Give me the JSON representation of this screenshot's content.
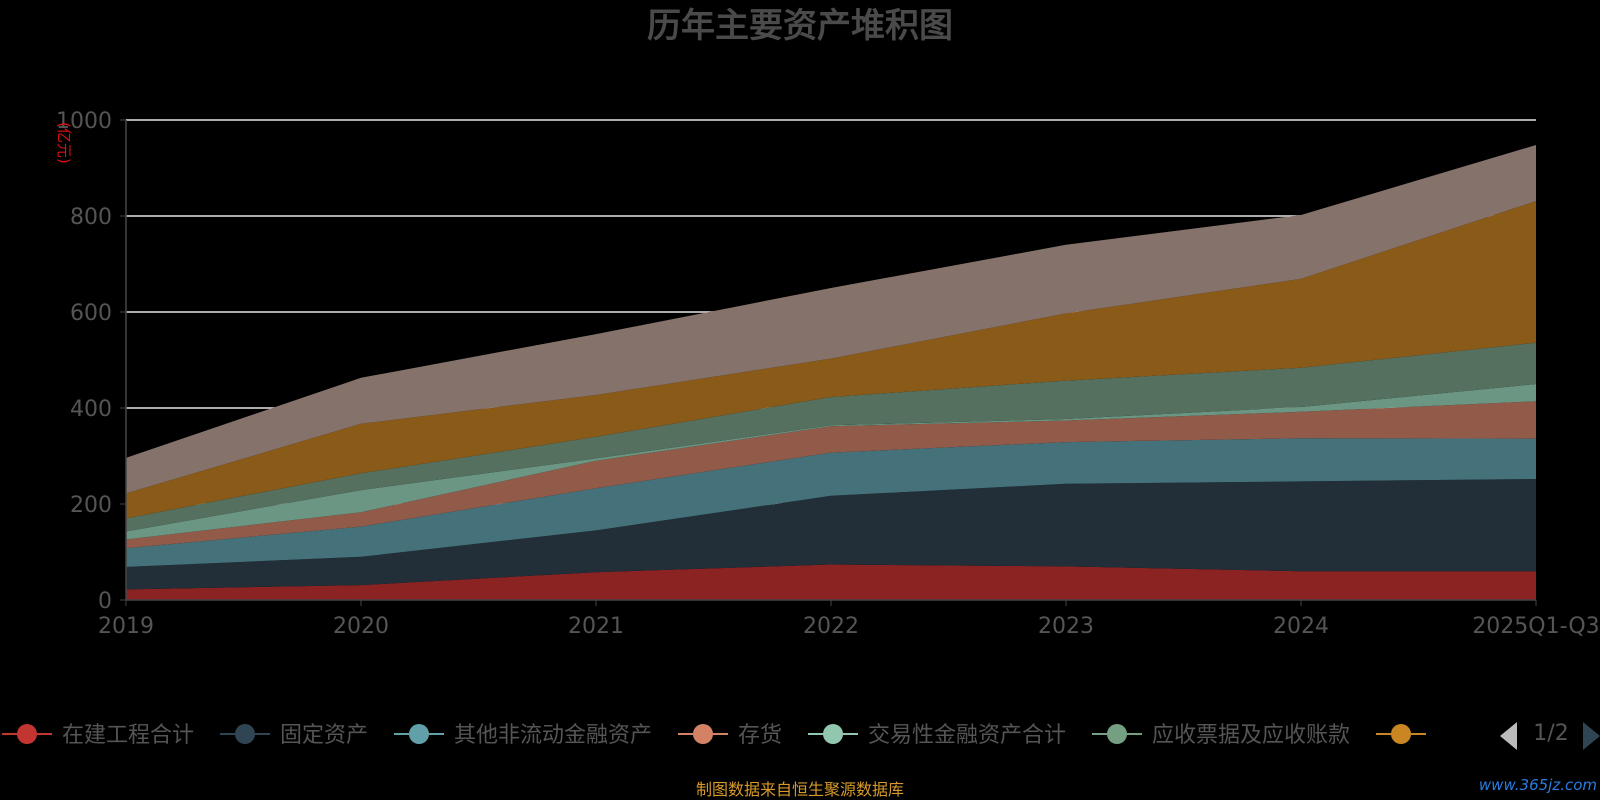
{
  "chart_data": {
    "type": "area",
    "stacked": true,
    "title": "历年主要资产堆积图",
    "unit_label": "(亿元)",
    "x": [
      "2019",
      "2020",
      "2021",
      "2022",
      "2023",
      "2024",
      "2025Q1-Q3"
    ],
    "ylim": [
      0,
      1000
    ],
    "yticks": [
      0,
      200,
      400,
      600,
      800,
      1000
    ],
    "grid": true,
    "legend_position": "bottom",
    "series": [
      {
        "name": "在建工程合计",
        "color": "#c23531",
        "fill": "#8b2323",
        "values": [
          22,
          31,
          58,
          74,
          70,
          60,
          60
        ]
      },
      {
        "name": "固定资产",
        "color": "#2f4554",
        "fill": "#222e38",
        "values": [
          47,
          59,
          87,
          143,
          172,
          187,
          192
        ]
      },
      {
        "name": "其他非流动金融资产",
        "color": "#61a0a8",
        "fill": "#45717a",
        "values": [
          39,
          63,
          88,
          90,
          87,
          90,
          84
        ]
      },
      {
        "name": "存货",
        "color": "#d48265",
        "fill": "#925a49",
        "values": [
          18,
          30,
          57,
          55,
          45,
          55,
          78
        ]
      },
      {
        "name": "交易性金融资产合计",
        "color": "#91c7ae",
        "fill": "#6a9683",
        "values": [
          17,
          46,
          5,
          2,
          3,
          10,
          36
        ]
      },
      {
        "name": "应收票据及应收账款",
        "color": "#749f83",
        "fill": "#55705f",
        "values": [
          27,
          35,
          45,
          59,
          80,
          82,
          86
        ]
      },
      {
        "name": "",
        "color": "#ca8622",
        "fill": "#8a5a18",
        "values": [
          52,
          103,
          87,
          80,
          140,
          185,
          295
        ]
      },
      {
        "name": "",
        "color": "#bda29a",
        "fill": "#85726b",
        "values": [
          74,
          96,
          127,
          147,
          143,
          133,
          117
        ]
      }
    ],
    "legend_visible_count": 7,
    "pager": "1/2",
    "source_note": "制图数据来自恒生聚源数据库",
    "watermark": "www.365jz.com"
  }
}
